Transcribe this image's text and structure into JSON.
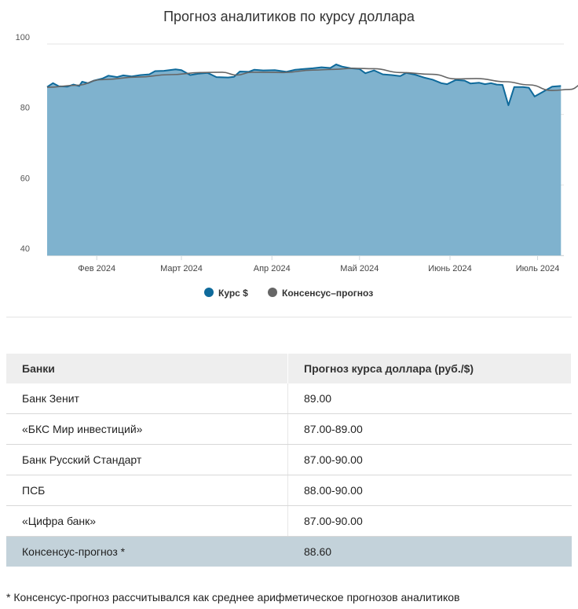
{
  "chart_data": {
    "type": "area",
    "title": "Прогноз аналитиков по курсу доллара",
    "y_ticks": [
      "40",
      "60",
      "80",
      "100"
    ],
    "ylim": [
      40,
      100
    ],
    "x_ticks": [
      {
        "label": "Фев 2024",
        "date": "2024-02-01"
      },
      {
        "label": "Март 2024",
        "date": "2024-03-01"
      },
      {
        "label": "Апр 2024",
        "date": "2024-04-01"
      },
      {
        "label": "Май 2024",
        "date": "2024-05-01"
      },
      {
        "label": "Июнь 2024",
        "date": "2024-06-01"
      },
      {
        "label": "Июль 2024",
        "date": "2024-07-01"
      }
    ],
    "xlim": [
      "2024-01-15",
      "2024-07-10"
    ],
    "grid": true,
    "legend": "bottom-center",
    "series": [
      {
        "name": "Курс $",
        "color": "#0f6a9b",
        "fill": "#7fb2ce",
        "points": [
          [
            "2024-01-15",
            87.8
          ],
          [
            "2024-01-17",
            88.9
          ],
          [
            "2024-01-19",
            88.0
          ],
          [
            "2024-01-22",
            87.9
          ],
          [
            "2024-01-24",
            88.5
          ],
          [
            "2024-01-26",
            88.1
          ],
          [
            "2024-01-27",
            89.3
          ],
          [
            "2024-01-29",
            88.9
          ],
          [
            "2024-01-31",
            89.6
          ],
          [
            "2024-02-03",
            90.2
          ],
          [
            "2024-02-05",
            91.0
          ],
          [
            "2024-02-08",
            90.6
          ],
          [
            "2024-02-10",
            91.1
          ],
          [
            "2024-02-13",
            90.8
          ],
          [
            "2024-02-16",
            91.2
          ],
          [
            "2024-02-19",
            91.4
          ],
          [
            "2024-02-21",
            92.3
          ],
          [
            "2024-02-24",
            92.4
          ],
          [
            "2024-02-28",
            92.8
          ],
          [
            "2024-03-01",
            92.6
          ],
          [
            "2024-03-04",
            91.2
          ],
          [
            "2024-03-07",
            91.6
          ],
          [
            "2024-03-10",
            91.8
          ],
          [
            "2024-03-13",
            90.6
          ],
          [
            "2024-03-17",
            90.5
          ],
          [
            "2024-03-19",
            90.7
          ],
          [
            "2024-03-21",
            92.2
          ],
          [
            "2024-03-24",
            92.1
          ],
          [
            "2024-03-26",
            92.7
          ],
          [
            "2024-03-29",
            92.5
          ],
          [
            "2024-04-02",
            92.6
          ],
          [
            "2024-04-06",
            92.1
          ],
          [
            "2024-04-09",
            92.7
          ],
          [
            "2024-04-12",
            92.9
          ],
          [
            "2024-04-15",
            93.1
          ],
          [
            "2024-04-18",
            93.4
          ],
          [
            "2024-04-21",
            93.2
          ],
          [
            "2024-04-23",
            94.2
          ],
          [
            "2024-04-25",
            93.6
          ],
          [
            "2024-04-28",
            93.1
          ],
          [
            "2024-05-01",
            92.9
          ],
          [
            "2024-05-03",
            91.7
          ],
          [
            "2024-05-06",
            92.5
          ],
          [
            "2024-05-09",
            91.4
          ],
          [
            "2024-05-12",
            91.2
          ],
          [
            "2024-05-15",
            90.9
          ],
          [
            "2024-05-17",
            91.8
          ],
          [
            "2024-05-20",
            91.3
          ],
          [
            "2024-05-23",
            90.5
          ],
          [
            "2024-05-26",
            89.9
          ],
          [
            "2024-05-29",
            88.9
          ],
          [
            "2024-05-31",
            88.6
          ],
          [
            "2024-06-03",
            89.8
          ],
          [
            "2024-06-06",
            89.6
          ],
          [
            "2024-06-08",
            88.8
          ],
          [
            "2024-06-11",
            89.0
          ],
          [
            "2024-06-13",
            88.6
          ],
          [
            "2024-06-15",
            88.9
          ],
          [
            "2024-06-17",
            88.5
          ],
          [
            "2024-06-19",
            88.4
          ],
          [
            "2024-06-21",
            82.6
          ],
          [
            "2024-06-23",
            87.8
          ],
          [
            "2024-06-26",
            87.8
          ],
          [
            "2024-06-28",
            87.6
          ],
          [
            "2024-06-30",
            85.1
          ],
          [
            "2024-07-03",
            86.5
          ],
          [
            "2024-07-06",
            87.9
          ],
          [
            "2024-07-09",
            88.1
          ]
        ]
      },
      {
        "name": "Консенсус–прогноз",
        "color": "#666666",
        "points": [
          [
            "2024-01-15",
            87.7
          ],
          [
            "2024-01-25",
            88.3
          ],
          [
            "2024-02-03",
            89.9
          ],
          [
            "2024-02-15",
            90.6
          ],
          [
            "2024-02-26",
            91.3
          ],
          [
            "2024-03-08",
            91.9
          ],
          [
            "2024-03-15",
            92.0
          ],
          [
            "2024-03-20",
            91.2
          ],
          [
            "2024-03-25",
            92.0
          ],
          [
            "2024-04-05",
            91.9
          ],
          [
            "2024-04-15",
            92.6
          ],
          [
            "2024-04-22",
            92.8
          ],
          [
            "2024-04-29",
            93.1
          ],
          [
            "2024-05-06",
            93.0
          ],
          [
            "2024-05-15",
            91.9
          ],
          [
            "2024-05-26",
            91.4
          ],
          [
            "2024-06-03",
            90.1
          ],
          [
            "2024-06-10",
            90.2
          ],
          [
            "2024-06-20",
            89.3
          ],
          [
            "2024-06-28",
            88.4
          ],
          [
            "2024-07-06",
            86.8
          ],
          [
            "2024-07-12",
            87.1
          ],
          [
            "2024-07-17",
            88.8
          ]
        ]
      }
    ]
  },
  "table": {
    "headers": [
      "Банки",
      "Прогноз курса доллара (руб./$)"
    ],
    "rows": [
      [
        "Банк Зенит",
        "89.00"
      ],
      [
        "«БКС Мир инвестиций»",
        "87.00-89.00"
      ],
      [
        "Банк Русский Стандарт",
        "87.00-90.00"
      ],
      [
        "ПСБ",
        "88.00-90.00"
      ],
      [
        "«Цифра банк»",
        "87.00-90.00"
      ]
    ],
    "consensus_row": [
      "Консенсус-прогноз *",
      "88.60"
    ]
  },
  "footnote": "* Консенсус-прогноз рассчитывался как среднее арифметическое прогнозов аналитиков"
}
